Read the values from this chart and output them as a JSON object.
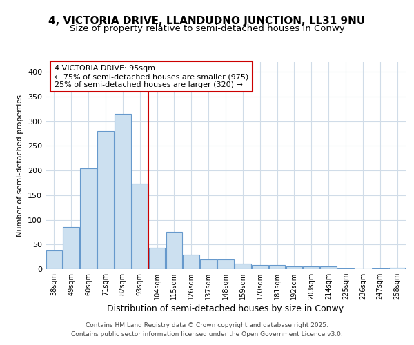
{
  "title1": "4, VICTORIA DRIVE, LLANDUDNO JUNCTION, LL31 9NU",
  "title2": "Size of property relative to semi-detached houses in Conwy",
  "xlabel": "Distribution of semi-detached houses by size in Conwy",
  "ylabel": "Number of semi-detached properties",
  "categories": [
    "38sqm",
    "49sqm",
    "60sqm",
    "71sqm",
    "82sqm",
    "93sqm",
    "104sqm",
    "115sqm",
    "126sqm",
    "137sqm",
    "148sqm",
    "159sqm",
    "170sqm",
    "181sqm",
    "192sqm",
    "203sqm",
    "214sqm",
    "225sqm",
    "236sqm",
    "247sqm",
    "258sqm"
  ],
  "values": [
    38,
    86,
    204,
    280,
    315,
    173,
    44,
    75,
    30,
    19,
    19,
    11,
    8,
    8,
    5,
    6,
    6,
    1,
    0,
    2,
    3
  ],
  "bar_color": "#cce0f0",
  "bar_edge_color": "#6699cc",
  "highlight_bar_index": 5,
  "vline_color": "#cc0000",
  "annotation_title": "4 VICTORIA DRIVE: 95sqm",
  "annotation_line1": "← 75% of semi-detached houses are smaller (975)",
  "annotation_line2": "25% of semi-detached houses are larger (320) →",
  "annotation_box_color": "#ffffff",
  "annotation_box_edge_color": "#cc0000",
  "footer1": "Contains HM Land Registry data © Crown copyright and database right 2025.",
  "footer2": "Contains public sector information licensed under the Open Government Licence v3.0.",
  "ylim": [
    0,
    420
  ],
  "yticks": [
    0,
    50,
    100,
    150,
    200,
    250,
    300,
    350,
    400
  ],
  "bg_color": "#ffffff",
  "plot_bg_color": "#ffffff",
  "grid_color": "#d0dce8",
  "title1_fontsize": 11,
  "title2_fontsize": 9.5
}
